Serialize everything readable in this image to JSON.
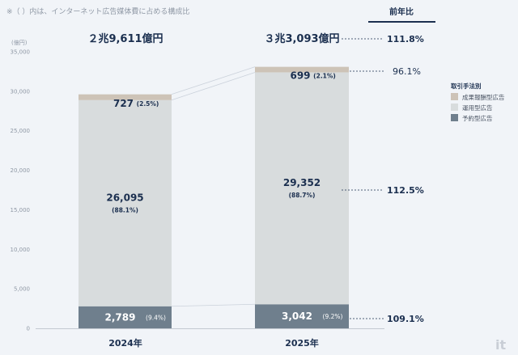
{
  "note": "※（ ）内は、インターネット広告媒体費に占める構成比",
  "watermark": "itm",
  "chart_data": {
    "type": "stacked-bar",
    "title": "",
    "unit_label": "(億円)",
    "ylim": [
      0,
      35000
    ],
    "yticks": [
      0,
      5000,
      10000,
      15000,
      20000,
      25000,
      30000,
      35000
    ],
    "ytick_labels": [
      "0",
      "5,000",
      "10,000",
      "15,000",
      "20,000",
      "25,000",
      "30,000",
      "35,000"
    ],
    "categories": [
      "2024年",
      "2025年"
    ],
    "totals": [
      "２兆9,611億円",
      "３兆3,093億円"
    ],
    "series": [
      {
        "name": "予約型広告",
        "color": "#6f7f8d",
        "values": [
          2789,
          3042
        ],
        "labels": [
          "2,789",
          "3,042"
        ],
        "shares": [
          "(9.4%)",
          "(9.2%)"
        ]
      },
      {
        "name": "運用型広告",
        "color": "#d8dcdd",
        "values": [
          26095,
          29352
        ],
        "labels": [
          "26,095",
          "29,352"
        ],
        "shares": [
          "(88.1%)",
          "(88.7%)"
        ]
      },
      {
        "name": "成果報酬型広告",
        "color": "#cdc3b7",
        "values": [
          727,
          699
        ],
        "labels": [
          "727",
          "699"
        ],
        "shares": [
          "(2.5%)",
          "(2.1%)"
        ]
      }
    ],
    "legend": {
      "title": "取引手法別",
      "items": [
        {
          "name": "成果報酬型広告",
          "color": "#cdc3b7"
        },
        {
          "name": "運用型広告",
          "color": "#d8dcdd"
        },
        {
          "name": "予約型広告",
          "color": "#6f7f8d"
        }
      ]
    },
    "yoy": {
      "title": "前年比",
      "total": "111.8%",
      "performance": "96.1%",
      "programmatic": "112.5%",
      "reserved": "109.1%"
    }
  }
}
